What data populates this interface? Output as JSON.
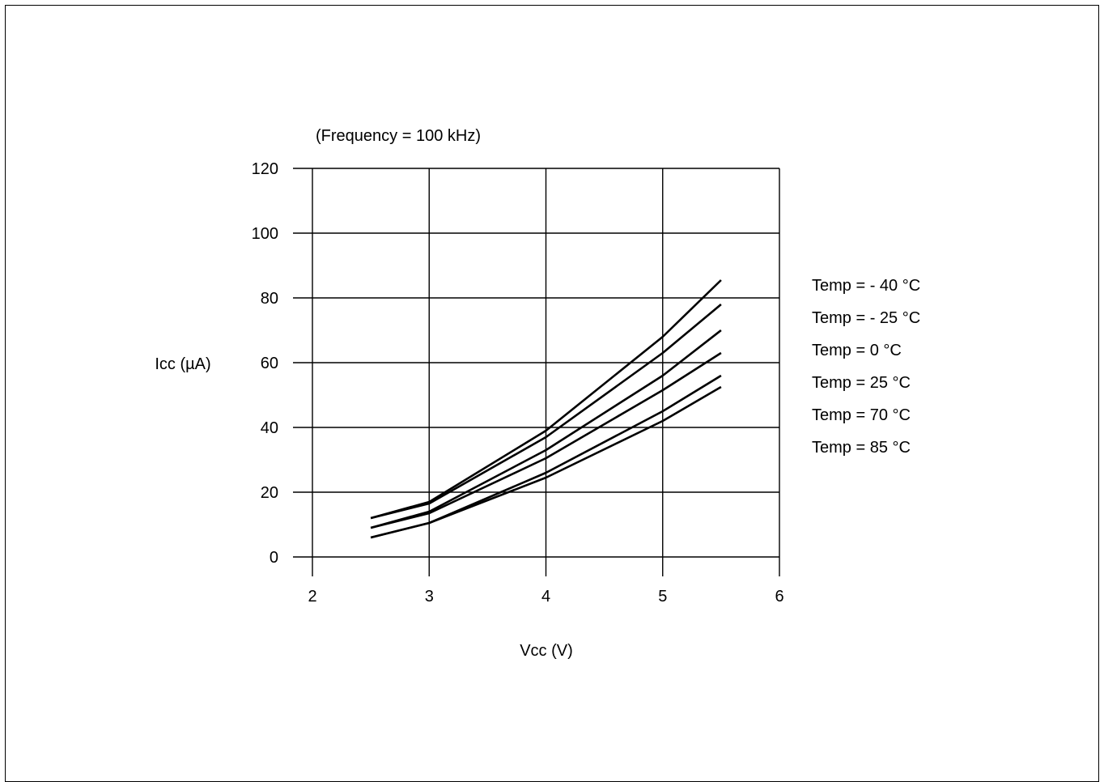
{
  "chart_data": {
    "type": "line",
    "subtitle": "(Frequency = 100 kHz)",
    "xlabel": "Vcc (V)",
    "ylabel": "Icc (µA)",
    "xlim": [
      2,
      6
    ],
    "ylim": [
      0,
      120
    ],
    "x_ticks": [
      2,
      3,
      4,
      5,
      6
    ],
    "y_ticks": [
      0,
      20,
      40,
      60,
      80,
      100,
      120
    ],
    "x_tick_labels": [
      "2",
      "3",
      "4",
      "5",
      "6"
    ],
    "y_tick_labels": [
      "0",
      "20",
      "40",
      "60",
      "80",
      "100",
      "120"
    ],
    "grid": true,
    "legend_position": "right",
    "line_color": "#000000",
    "x": [
      2.5,
      3,
      4,
      5,
      5.5
    ],
    "series": [
      {
        "name": "Temp = - 40 °C",
        "values": [
          12,
          17,
          39,
          68,
          85.5
        ]
      },
      {
        "name": "Temp = - 25 °C",
        "values": [
          12,
          16.5,
          37,
          63,
          78
        ]
      },
      {
        "name": "Temp = 0 °C",
        "values": [
          9,
          14,
          33,
          56,
          70
        ]
      },
      {
        "name": "Temp = 25 °C",
        "values": [
          9,
          13.5,
          30.5,
          51.5,
          63
        ]
      },
      {
        "name": "Temp = 70 °C",
        "values": [
          6,
          10.5,
          26,
          45,
          56
        ]
      },
      {
        "name": "Temp = 85 °C",
        "values": [
          6,
          10.5,
          24.5,
          42,
          52.5
        ]
      }
    ]
  }
}
